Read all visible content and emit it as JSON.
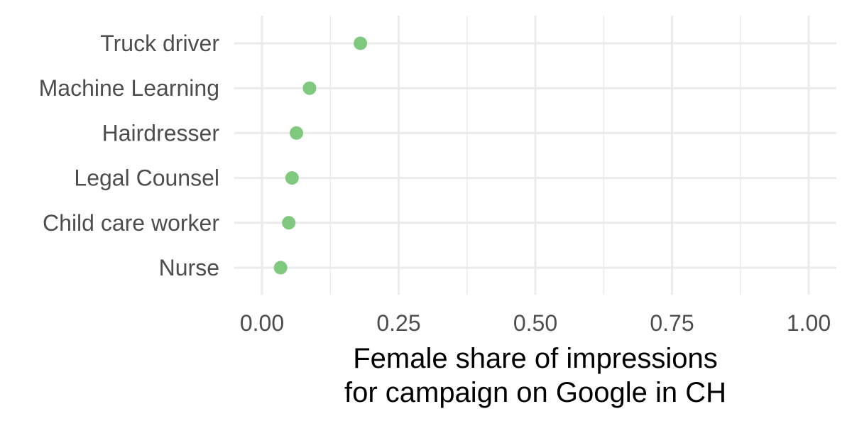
{
  "chart_data": {
    "type": "scatter",
    "orientation": "horizontal",
    "categories": [
      "Truck driver",
      "Machine Learning",
      "Hairdresser",
      "Legal Counsel",
      "Child care worker",
      "Nurse"
    ],
    "values": [
      0.18,
      0.087,
      0.063,
      0.055,
      0.049,
      0.034
    ],
    "xlabel": [
      "Female share of impressions",
      "for campaign on Google in CH"
    ],
    "xlim": [
      0,
      1
    ],
    "xticks": [
      0.0,
      0.25,
      0.5,
      0.75,
      1.0
    ],
    "xtick_labels": [
      "0.00",
      "0.25",
      "0.50",
      "0.75",
      "1.00"
    ],
    "point_color": "#7fc97f",
    "grid": true,
    "legend": "none"
  }
}
